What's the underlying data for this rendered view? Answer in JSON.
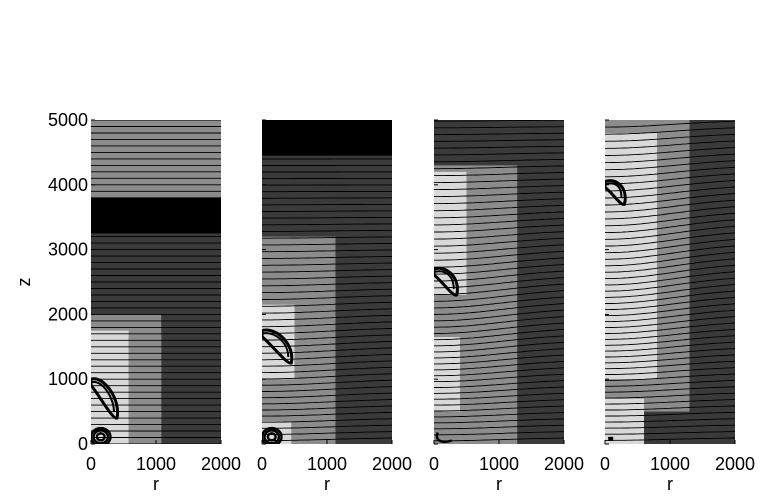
{
  "chart_data": {
    "type": "heatmap",
    "ylabel": "z",
    "xlabel": "r",
    "xlim": [
      0,
      2000
    ],
    "ylim": [
      0,
      5000
    ],
    "x_ticks": [
      "0",
      "1000",
      "2000"
    ],
    "y_ticks": [
      "0",
      "1000",
      "2000",
      "3000",
      "4000",
      "5000"
    ],
    "palette": {
      "light": "#d9d9d9",
      "mid": "#8c8c8c",
      "dark": "#3a3a3a",
      "black": "#000000"
    },
    "panels": [
      {
        "regions": [
          {
            "r": [
              0,
              2000
            ],
            "z": [
              0,
              5000
            ],
            "shade": "dark"
          },
          {
            "r": [
              0,
              2000
            ],
            "z": [
              3800,
              5000
            ],
            "shade": "mid"
          },
          {
            "r": [
              0,
              2000
            ],
            "z": [
              3250,
              3800
            ],
            "shade": "black"
          },
          {
            "r": [
              0,
              1080
            ],
            "z": [
              0,
              2000
            ],
            "shade": "mid"
          },
          {
            "r": [
              0,
              580
            ],
            "z": [
              0,
              1750
            ],
            "shade": "light"
          },
          {
            "r": [
              580,
              1080
            ],
            "z": [
              0,
              1750
            ],
            "shade": "mid"
          }
        ],
        "streamline_spacing": 100,
        "bulge": {
          "z_center": 700,
          "r_center": 200,
          "r_extent": 1400,
          "z_extent": 1200,
          "amplitude": 0
        },
        "contours": [
          {
            "type": "loop",
            "r": [
              0,
              400
            ],
            "z": [
              400,
              1000
            ]
          },
          {
            "type": "rings",
            "r_center": 150,
            "z_center": 110,
            "radii": [
              60,
              110,
              150
            ]
          }
        ]
      },
      {
        "regions": [
          {
            "r": [
              0,
              2000
            ],
            "z": [
              0,
              5000
            ],
            "shade": "dark"
          },
          {
            "r": [
              0,
              2000
            ],
            "z": [
              4450,
              5000
            ],
            "shade": "black"
          },
          {
            "r": [
              0,
              1130
            ],
            "z": [
              0,
              3200
            ],
            "shade": "mid"
          },
          {
            "r": [
              0,
              1000
            ],
            "z": [
              0,
              3100
            ],
            "shade": "mid"
          },
          {
            "r": [
              0,
              500
            ],
            "z": [
              1000,
              2150
            ],
            "shade": "light"
          },
          {
            "r": [
              0,
              450
            ],
            "z": [
              0,
              350
            ],
            "shade": "light"
          }
        ],
        "streamline_spacing": 100,
        "bulge": {
          "z_center": 1400,
          "r_center": 200,
          "r_extent": 1500,
          "z_extent": 1500,
          "amplitude": -100
        },
        "contours": [
          {
            "type": "loop",
            "r": [
              0,
              450
            ],
            "z": [
              1250,
              1750
            ]
          },
          {
            "type": "rings",
            "r_center": 150,
            "z_center": 110,
            "radii": [
              60,
              110,
              150
            ]
          }
        ]
      },
      {
        "regions": [
          {
            "r": [
              0,
              2000
            ],
            "z": [
              0,
              5000
            ],
            "shade": "dark"
          },
          {
            "r": [
              0,
              1280
            ],
            "z": [
              0,
              4300
            ],
            "shade": "mid"
          },
          {
            "r": [
              0,
              1100
            ],
            "z": [
              0,
              4150
            ],
            "shade": "mid"
          },
          {
            "r": [
              0,
              500
            ],
            "z": [
              2300,
              4200
            ],
            "shade": "light"
          },
          {
            "r": [
              0,
              400
            ],
            "z": [
              500,
              1650
            ],
            "shade": "light"
          }
        ],
        "streamline_spacing": 100,
        "bulge": {
          "z_center": 2200,
          "r_center": 200,
          "r_extent": 1500,
          "z_extent": 1800,
          "amplitude": -200
        },
        "contours": [
          {
            "type": "loop",
            "r": [
              0,
              350
            ],
            "z": [
              2300,
              2700
            ]
          },
          {
            "type": "hook",
            "r_center": 120,
            "z_center": 100
          }
        ]
      },
      {
        "regions": [
          {
            "r": [
              0,
              2000
            ],
            "z": [
              0,
              5000
            ],
            "shade": "dark"
          },
          {
            "r": [
              0,
              1300
            ],
            "z": [
              500,
              5000
            ],
            "shade": "mid"
          },
          {
            "r": [
              0,
              800
            ],
            "z": [
              1000,
              4800
            ],
            "shade": "light"
          },
          {
            "r": [
              0,
              600
            ],
            "z": [
              0,
              700
            ],
            "shade": "light"
          },
          {
            "r": [
              0,
              250
            ],
            "z": [
              3500,
              4150
            ],
            "shade": "light"
          }
        ],
        "streamline_spacing": 100,
        "bulge": {
          "z_center": 3000,
          "r_center": 200,
          "r_extent": 1500,
          "z_extent": 2200,
          "amplitude": -250
        },
        "contours": [
          {
            "type": "loop",
            "r": [
              0,
              300
            ],
            "z": [
              3700,
              4050
            ]
          },
          {
            "type": "dot",
            "r_center": 80,
            "z_center": 80
          }
        ]
      }
    ]
  }
}
